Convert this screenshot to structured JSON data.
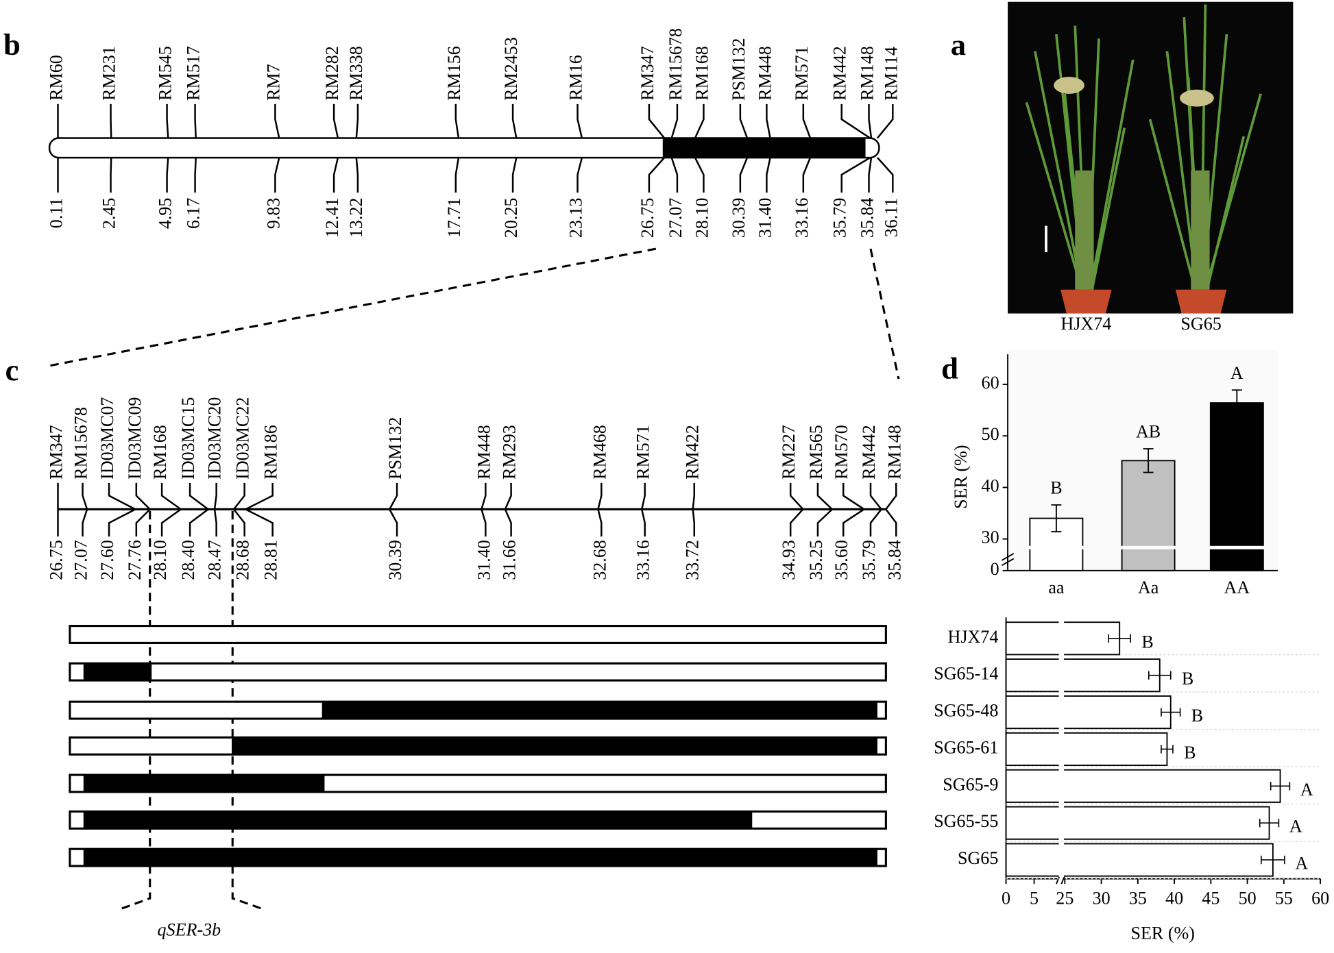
{
  "panel_b": {
    "label": "b",
    "markers": [
      {
        "name": "RM60",
        "position": "0.11"
      },
      {
        "name": "RM231",
        "position": "2.45"
      },
      {
        "name": "RM545",
        "position": "4.95"
      },
      {
        "name": "RM517",
        "position": "6.17"
      },
      {
        "name": "RM7",
        "position": "9.83"
      },
      {
        "name": "RM282",
        "position": "12.41"
      },
      {
        "name": "RM338",
        "position": "13.22"
      },
      {
        "name": "RM156",
        "position": "17.71"
      },
      {
        "name": "RM2453",
        "position": "20.25"
      },
      {
        "name": "RM16",
        "position": "23.13"
      },
      {
        "name": "RM347",
        "position": "26.75"
      },
      {
        "name": "RM15678",
        "position": "27.07"
      },
      {
        "name": "RM168",
        "position": "28.10"
      },
      {
        "name": "PSM132",
        "position": "30.39"
      },
      {
        "name": "RM448",
        "position": "31.40"
      },
      {
        "name": "RM571",
        "position": "33.16"
      },
      {
        "name": "RM442",
        "position": "35.79"
      },
      {
        "name": "RM148",
        "position": "35.84"
      },
      {
        "name": "RM114",
        "position": "36.11"
      }
    ]
  },
  "panel_a": {
    "label": "a",
    "varieties": [
      "HJX74",
      "SG65"
    ]
  },
  "panel_c": {
    "label": "c",
    "qtl": "qSER-3b",
    "markers": [
      {
        "name": "RM347",
        "position": "26.75"
      },
      {
        "name": "RM15678",
        "position": "27.07"
      },
      {
        "name": "ID03MC07",
        "position": "27.60"
      },
      {
        "name": "ID03MC09",
        "position": "27.76"
      },
      {
        "name": "RM168",
        "position": "28.10"
      },
      {
        "name": "ID03MC15",
        "position": "28.40"
      },
      {
        "name": "ID03MC20",
        "position": "28.47"
      },
      {
        "name": "ID03MC22",
        "position": "28.68"
      },
      {
        "name": "RM186",
        "position": "28.81"
      },
      {
        "name": "PSM132",
        "position": "30.39"
      },
      {
        "name": "RM448",
        "position": "31.40"
      },
      {
        "name": "RM293",
        "position": "31.66"
      },
      {
        "name": "RM468",
        "position": "32.68"
      },
      {
        "name": "RM571",
        "position": "33.16"
      },
      {
        "name": "RM422",
        "position": "33.72"
      },
      {
        "name": "RM227",
        "position": "34.93"
      },
      {
        "name": "RM565",
        "position": "35.25"
      },
      {
        "name": "RM570",
        "position": "35.60"
      },
      {
        "name": "RM442",
        "position": "35.79"
      },
      {
        "name": "RM148",
        "position": "35.84"
      }
    ]
  },
  "panel_d": {
    "label": "d"
  },
  "chart_data": [
    {
      "type": "bar",
      "categories": [
        "aa",
        "Aa",
        "AA"
      ],
      "values": [
        34,
        45.2,
        56.4
      ],
      "errors": [
        2.6,
        2.3,
        2.5
      ],
      "significance": [
        "B",
        "AB",
        "A"
      ],
      "colors": [
        "#ffffff",
        "#c0c0c0",
        "#000000"
      ],
      "ylabel": "SER (%)",
      "ylim": [
        0,
        65
      ],
      "ybreak": [
        1,
        27
      ],
      "yticks": [
        0,
        30,
        40,
        50,
        60
      ]
    },
    {
      "type": "bar",
      "horizontal": true,
      "categories": [
        "HJX74",
        "SG65-14",
        "SG65-48",
        "SG65-61",
        "SG65-9",
        "SG65-55",
        "SG65"
      ],
      "values": [
        32.5,
        38,
        39.5,
        39,
        54.5,
        53,
        53.5
      ],
      "errors": [
        1.5,
        1.5,
        1.3,
        0.8,
        1.3,
        1.3,
        1.6
      ],
      "significance": [
        "B",
        "B",
        "B",
        "B",
        "A",
        "A",
        "A"
      ],
      "color": "#ffffff",
      "xlabel": "SER (%)",
      "xlim": [
        0,
        60
      ],
      "xbreak": [
        5,
        25
      ],
      "xticks": [
        0,
        5,
        25,
        30,
        35,
        40,
        45,
        50,
        55,
        60
      ]
    }
  ]
}
